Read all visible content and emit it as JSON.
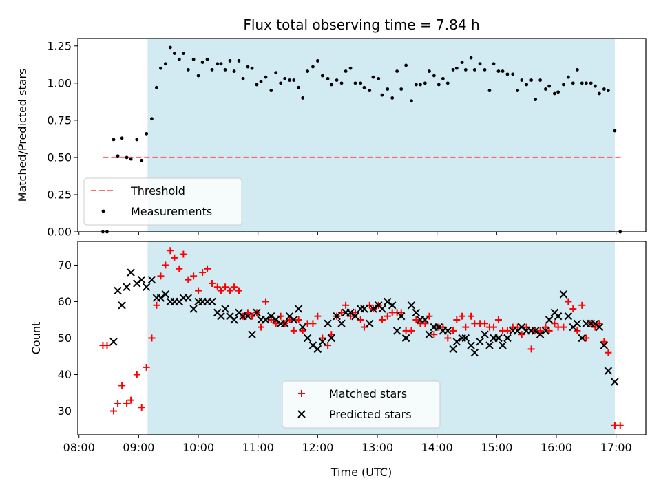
{
  "chart_data": {
    "title": "Flux total observing time = 7.84 h",
    "xlabel": "Time (UTC)",
    "x_ticks": [
      "08:00",
      "09:00",
      "10:00",
      "11:00",
      "12:00",
      "13:00",
      "14:00",
      "15:00",
      "16:00",
      "17:00"
    ],
    "xlim_hours": [
      7.98,
      17.5
    ],
    "observing_window_hours": [
      9.15,
      16.98
    ],
    "colors": {
      "window": "#add8e6",
      "threshold": "#ff4d4d",
      "matched": "#ff0000",
      "predicted": "#000000",
      "measurements": "#000000"
    },
    "panels": [
      {
        "type": "scatter",
        "ylabel": "Matched/Predicted stars",
        "ylim": [
          0,
          1.3
        ],
        "y_ticks": [
          "0.00",
          "0.25",
          "0.50",
          "0.75",
          "1.00",
          "1.25"
        ],
        "legend_position": "lower-left",
        "threshold": {
          "name": "Threshold",
          "value": 0.5,
          "x_range": [
            8.4,
            17.08
          ]
        },
        "series": [
          {
            "name": "Measurements",
            "x": [
              8.4,
              8.47,
              8.58,
              8.65,
              8.72,
              8.8,
              8.87,
              8.97,
              9.05,
              9.13,
              9.22,
              9.3,
              9.37,
              9.45,
              9.53,
              9.6,
              9.68,
              9.75,
              9.83,
              9.92,
              10.0,
              10.07,
              10.15,
              10.23,
              10.32,
              10.38,
              10.45,
              10.53,
              10.6,
              10.68,
              10.75,
              10.83,
              10.9,
              10.98,
              11.05,
              11.13,
              11.22,
              11.3,
              11.38,
              11.45,
              11.53,
              11.6,
              11.68,
              11.75,
              11.83,
              11.92,
              12.0,
              12.08,
              12.17,
              12.23,
              12.32,
              12.4,
              12.47,
              12.55,
              12.63,
              12.72,
              12.78,
              12.87,
              12.93,
              13.02,
              13.08,
              13.17,
              13.25,
              13.33,
              13.4,
              13.48,
              13.57,
              13.65,
              13.72,
              13.8,
              13.87,
              13.95,
              14.03,
              14.1,
              14.18,
              14.27,
              14.33,
              14.42,
              14.48,
              14.57,
              14.63,
              14.72,
              14.8,
              14.88,
              14.95,
              15.03,
              15.1,
              15.18,
              15.27,
              15.35,
              15.42,
              15.5,
              15.58,
              15.65,
              15.73,
              15.82,
              15.88,
              15.97,
              16.03,
              16.12,
              16.2,
              16.28,
              16.35,
              16.43,
              16.5,
              16.58,
              16.65,
              16.72,
              16.8,
              16.87,
              16.98,
              17.07
            ],
            "y": [
              0.0,
              0.0,
              0.62,
              0.51,
              0.63,
              0.5,
              0.49,
              0.62,
              0.48,
              0.66,
              0.76,
              0.97,
              1.1,
              1.13,
              1.24,
              1.2,
              1.16,
              1.2,
              1.09,
              1.16,
              1.05,
              1.14,
              1.16,
              1.09,
              1.13,
              1.13,
              1.09,
              1.15,
              1.08,
              1.15,
              1.03,
              1.11,
              1.1,
              0.99,
              1.01,
              1.04,
              0.95,
              1.07,
              1.0,
              1.03,
              1.02,
              1.02,
              0.97,
              0.9,
              1.08,
              1.11,
              1.15,
              1.05,
              1.03,
              0.99,
              1.02,
              1.0,
              1.08,
              1.1,
              1.0,
              1.0,
              0.97,
              0.95,
              1.04,
              1.03,
              0.92,
              0.96,
              0.9,
              1.08,
              0.96,
              1.12,
              0.88,
              0.99,
              0.99,
              1.0,
              1.08,
              1.05,
              0.99,
              1.03,
              1.0,
              1.09,
              1.1,
              1.14,
              1.09,
              1.17,
              1.09,
              1.13,
              1.09,
              0.95,
              1.13,
              1.08,
              1.08,
              1.06,
              1.06,
              0.95,
              1.02,
              0.99,
              1.02,
              0.89,
              1.02,
              0.96,
              0.98,
              0.93,
              0.94,
              0.99,
              1.04,
              1.0,
              1.09,
              1.0,
              1.0,
              1.0,
              0.98,
              0.93,
              0.96,
              0.95,
              0.68,
              0.0
            ]
          }
        ]
      },
      {
        "type": "scatter",
        "ylabel": "Count",
        "ylim": [
          23.5,
          76.5
        ],
        "y_ticks": [
          "30",
          "40",
          "50",
          "60",
          "70"
        ],
        "legend_position": "lower-center",
        "series": [
          {
            "name": "Matched stars",
            "marker": "+",
            "x": [
              8.4,
              8.47,
              8.58,
              8.65,
              8.72,
              8.8,
              8.87,
              8.97,
              9.05,
              9.13,
              9.22,
              9.3,
              9.37,
              9.45,
              9.53,
              9.6,
              9.68,
              9.75,
              9.83,
              9.92,
              10.0,
              10.07,
              10.15,
              10.23,
              10.32,
              10.38,
              10.45,
              10.53,
              10.6,
              10.68,
              10.75,
              10.83,
              10.9,
              10.98,
              11.05,
              11.13,
              11.22,
              11.3,
              11.38,
              11.45,
              11.53,
              11.6,
              11.68,
              11.75,
              11.83,
              11.92,
              12.0,
              12.08,
              12.17,
              12.23,
              12.32,
              12.4,
              12.47,
              12.55,
              12.63,
              12.72,
              12.78,
              12.87,
              12.93,
              13.02,
              13.08,
              13.17,
              13.25,
              13.33,
              13.4,
              13.48,
              13.57,
              13.65,
              13.72,
              13.8,
              13.87,
              13.95,
              14.03,
              14.1,
              14.18,
              14.27,
              14.33,
              14.42,
              14.48,
              14.57,
              14.63,
              14.72,
              14.8,
              14.88,
              14.95,
              15.03,
              15.1,
              15.18,
              15.27,
              15.35,
              15.42,
              15.5,
              15.58,
              15.65,
              15.73,
              15.82,
              15.88,
              15.97,
              16.03,
              16.12,
              16.2,
              16.28,
              16.35,
              16.43,
              16.5,
              16.58,
              16.65,
              16.72,
              16.8,
              16.87,
              16.98,
              17.07
            ],
            "y": [
              48,
              48,
              30,
              32,
              37,
              32,
              33,
              40,
              31,
              42,
              50,
              59,
              67,
              70,
              74,
              72,
              69,
              73,
              66,
              67,
              63,
              68,
              69,
              65,
              64,
              63,
              64,
              63,
              64,
              63,
              56,
              57,
              56,
              57,
              53,
              60,
              55,
              54,
              56,
              54,
              55,
              52,
              55,
              52,
              54,
              54,
              56,
              50,
              48,
              51,
              56,
              57,
              59,
              56,
              57,
              55,
              53,
              59,
              58,
              59,
              55,
              56,
              57,
              57,
              57,
              52,
              52,
              55,
              54,
              54,
              56,
              51,
              53,
              53,
              50,
              52,
              55,
              56,
              53,
              56,
              54,
              54,
              54,
              53,
              53,
              55,
              52,
              52,
              53,
              53,
              51,
              53,
              47,
              52,
              52,
              53,
              52,
              54,
              53,
              53,
              60,
              58,
              52,
              59,
              50,
              54,
              53,
              54,
              49,
              46,
              26,
              26
            ]
          },
          {
            "name": "Predicted stars",
            "marker": "x",
            "x": [
              8.58,
              8.65,
              8.72,
              8.8,
              8.87,
              8.97,
              9.05,
              9.13,
              9.22,
              9.3,
              9.37,
              9.45,
              9.53,
              9.6,
              9.68,
              9.75,
              9.83,
              9.92,
              10.0,
              10.07,
              10.15,
              10.23,
              10.32,
              10.38,
              10.45,
              10.53,
              10.6,
              10.68,
              10.75,
              10.83,
              10.9,
              10.98,
              11.05,
              11.13,
              11.22,
              11.3,
              11.38,
              11.45,
              11.53,
              11.6,
              11.68,
              11.75,
              11.83,
              11.92,
              12.0,
              12.08,
              12.17,
              12.23,
              12.32,
              12.4,
              12.47,
              12.55,
              12.63,
              12.72,
              12.78,
              12.87,
              12.93,
              13.02,
              13.08,
              13.17,
              13.25,
              13.33,
              13.4,
              13.48,
              13.57,
              13.65,
              13.72,
              13.8,
              13.87,
              13.95,
              14.03,
              14.1,
              14.18,
              14.27,
              14.33,
              14.42,
              14.48,
              14.57,
              14.63,
              14.72,
              14.8,
              14.88,
              14.95,
              15.03,
              15.1,
              15.18,
              15.27,
              15.35,
              15.42,
              15.5,
              15.58,
              15.65,
              15.73,
              15.82,
              15.88,
              15.97,
              16.03,
              16.12,
              16.2,
              16.28,
              16.35,
              16.43,
              16.5,
              16.58,
              16.65,
              16.72,
              16.8,
              16.87,
              16.98
            ],
            "y": [
              49,
              63,
              59,
              64,
              68,
              65,
              66,
              64,
              66,
              61,
              61,
              62,
              60,
              60,
              60,
              61,
              61,
              58,
              60,
              60,
              60,
              60,
              57,
              56,
              58,
              56,
              55,
              57,
              56,
              56,
              51,
              57,
              55,
              55,
              56,
              55,
              54,
              54,
              56,
              55,
              58,
              53,
              50,
              48,
              47,
              49,
              54,
              50,
              56,
              54,
              57,
              57,
              56,
              58,
              58,
              54,
              58,
              59,
              58,
              60,
              59,
              52,
              56,
              50,
              59,
              57,
              55,
              55,
              51,
              53,
              53,
              52,
              52,
              47,
              49,
              50,
              50,
              48,
              46,
              49,
              51,
              48,
              50,
              50,
              48,
              50,
              52,
              52,
              53,
              52,
              52,
              52,
              51,
              52,
              55,
              57,
              56,
              62,
              56,
              53,
              54,
              50,
              54,
              54,
              54,
              53,
              48,
              41,
              38
            ]
          }
        ]
      }
    ]
  }
}
